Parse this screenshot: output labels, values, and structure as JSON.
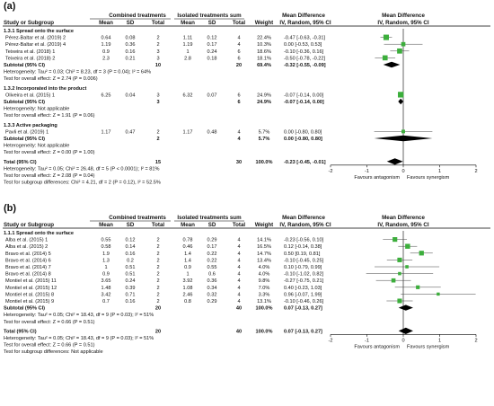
{
  "chart_data": [
    {
      "type": "forest",
      "panel_label": "(a)",
      "group_headers": [
        "Combined treatments",
        "Isolated treatments sum",
        "Mean Difference",
        "Mean Difference"
      ],
      "column_headers": [
        "Study or Subgroup",
        "Mean",
        "SD",
        "Total",
        "Mean",
        "SD",
        "Total",
        "Weight",
        "IV, Random, 95% CI",
        "IV, Random, 95% CI"
      ],
      "x_axis": {
        "min": -2,
        "max": 2,
        "ticks": [
          "-2",
          "-1",
          "0",
          "1",
          "2"
        ]
      },
      "favours_left": "Favours antagonism",
      "favours_right": "Favours synergism",
      "subgroups": [
        {
          "title": "1.3.1 Spread onto the surface",
          "studies": [
            {
              "name": "Pérez-Baltar et al. (2019) 2",
              "mean1": "0.64",
              "sd1": "0.08",
              "n1": "2",
              "mean2": "1.11",
              "sd2": "0.12",
              "n2": "4",
              "weight": "22.4%",
              "ci_text": "-0.47 [-0.63, -0.31]",
              "md": -0.47,
              "lo": -0.63,
              "hi": -0.31
            },
            {
              "name": "Pérez-Baltar et al. (2019) 4",
              "mean1": "1.19",
              "sd1": "0.36",
              "n1": "2",
              "mean2": "1.19",
              "sd2": "0.17",
              "n2": "4",
              "weight": "10.3%",
              "ci_text": "0.00 [-0.53, 0.53]",
              "md": 0.0,
              "lo": -0.53,
              "hi": 0.53
            },
            {
              "name": "Teixeira et al. (2018) 1",
              "mean1": "0.9",
              "sd1": "0.16",
              "n1": "3",
              "mean2": "1",
              "sd2": "0.24",
              "n2": "6",
              "weight": "18.6%",
              "ci_text": "-0.10 [-0.36, 0.16]",
              "md": -0.1,
              "lo": -0.36,
              "hi": 0.16
            },
            {
              "name": "Teixeira et al. (2018) 2",
              "mean1": "2.3",
              "sd1": "0.21",
              "n1": "3",
              "mean2": "2.8",
              "sd2": "0.18",
              "n2": "6",
              "weight": "18.1%",
              "ci_text": "-0.50 [-0.78, -0.22]",
              "md": -0.5,
              "lo": -0.78,
              "hi": -0.22
            }
          ],
          "subtotal": {
            "label": "Subtotal (95% CI)",
            "n1": "10",
            "n2": "20",
            "weight": "69.4%",
            "ci_text": "-0.32 [-0.55, -0.09]",
            "md": -0.32,
            "lo": -0.55,
            "hi": -0.09
          },
          "heterogeneity": "Heterogeneity: Tau² = 0.03; Chi² = 8.23, df = 3 (P = 0.04); I² = 64%",
          "overall_test": "Test for overall effect: Z = 2.74 (P = 0.006)"
        },
        {
          "title": "1.3.2 Incorporated into the product",
          "studies": [
            {
              "name": "Oliveira et al. (2015) 1",
              "mean1": "6.25",
              "sd1": "0.04",
              "n1": "3",
              "mean2": "6.32",
              "sd2": "0.07",
              "n2": "6",
              "weight": "24.9%",
              "ci_text": "-0.07 [-0.14, 0.00]",
              "md": -0.07,
              "lo": -0.14,
              "hi": 0.0
            }
          ],
          "subtotal": {
            "label": "Subtotal (95% CI)",
            "n1": "3",
            "n2": "6",
            "weight": "24.9%",
            "ci_text": "-0.07 [-0.14, 0.00]",
            "md": -0.07,
            "lo": -0.14,
            "hi": 0.0
          },
          "heterogeneity": "Heterogeneity: Not applicable",
          "overall_test": "Test for overall effect: Z = 1.91 (P = 0.06)"
        },
        {
          "title": "1.3.3 Active packaging",
          "studies": [
            {
              "name": "Pavli et al. (2019) 1",
              "mean1": "1.17",
              "sd1": "0.47",
              "n1": "2",
              "mean2": "1.17",
              "sd2": "0.48",
              "n2": "4",
              "weight": "5.7%",
              "ci_text": "0.00 [-0.80, 0.80]",
              "md": 0.0,
              "lo": -0.8,
              "hi": 0.8
            }
          ],
          "subtotal": {
            "label": "Subtotal (95% CI)",
            "n1": "2",
            "n2": "4",
            "weight": "5.7%",
            "ci_text": "0.00 [-0.80, 0.80]",
            "md": 0.0,
            "lo": -0.8,
            "hi": 0.8
          },
          "heterogeneity": "Heterogeneity: Not applicable",
          "overall_test": "Test for overall effect: Z = 0.00 (P = 1.00)"
        }
      ],
      "total": {
        "label": "Total (95% CI)",
        "n1": "15",
        "n2": "30",
        "weight": "100.0%",
        "ci_text": "-0.23 [-0.45, -0.01]",
        "md": -0.23,
        "lo": -0.45,
        "hi": -0.01,
        "heterogeneity": "Heterogeneity: Tau² = 0.05; Chi² = 26.48, df = 5 (P < 0.0001); I² = 81%",
        "overall_test": "Test for overall effect: Z = 2.08 (P = 0.04)",
        "subgroup_test": "Test for subgroup differences: Chi² = 4.21, df = 2 (P = 0.12), I² = 52.5%"
      }
    },
    {
      "type": "forest",
      "panel_label": "(b)",
      "group_headers": [
        "Combined treatments",
        "Isolated treatments sum",
        "Mean Difference",
        "Mean Difference"
      ],
      "column_headers": [
        "Study or Subgroup",
        "Mean",
        "SD",
        "Total",
        "Mean",
        "SD",
        "Total",
        "Weight",
        "IV, Random, 95% CI",
        "IV, Random, 95% CI"
      ],
      "x_axis": {
        "min": -2,
        "max": 2,
        "ticks": [
          "-2",
          "-1",
          "0",
          "1",
          "2"
        ]
      },
      "favours_left": "Favours antagonism",
      "favours_right": "Favours synergism",
      "subgroups": [
        {
          "title": "1.1.1 Spread onto the surface",
          "studies": [
            {
              "name": "Alba et al. (2015) 1",
              "mean1": "0.55",
              "sd1": "0.12",
              "n1": "2",
              "mean2": "0.78",
              "sd2": "0.29",
              "n2": "4",
              "weight": "14.1%",
              "ci_text": "-0.23 [-0.56, 0.10]",
              "md": -0.23,
              "lo": -0.56,
              "hi": 0.1
            },
            {
              "name": "Alba et al. (2015) 2",
              "mean1": "0.58",
              "sd1": "0.14",
              "n1": "2",
              "mean2": "0.46",
              "sd2": "0.17",
              "n2": "4",
              "weight": "16.5%",
              "ci_text": "0.12 [-0.14, 0.38]",
              "md": 0.12,
              "lo": -0.14,
              "hi": 0.38
            },
            {
              "name": "Bravo et al. (2014) 5",
              "mean1": "1.9",
              "sd1": "0.16",
              "n1": "2",
              "mean2": "1.4",
              "sd2": "0.22",
              "n2": "4",
              "weight": "14.7%",
              "ci_text": "0.50 [0.19, 0.81]",
              "md": 0.5,
              "lo": 0.19,
              "hi": 0.81
            },
            {
              "name": "Bravo et al. (2014) 6",
              "mean1": "1.3",
              "sd1": "0.2",
              "n1": "2",
              "mean2": "1.4",
              "sd2": "0.22",
              "n2": "4",
              "weight": "13.4%",
              "ci_text": "-0.10 [-0.45, 0.25]",
              "md": -0.1,
              "lo": -0.45,
              "hi": 0.25
            },
            {
              "name": "Bravo et al. (2014) 7",
              "mean1": "1",
              "sd1": "0.51",
              "n1": "2",
              "mean2": "0.9",
              "sd2": "0.55",
              "n2": "4",
              "weight": "4.0%",
              "ci_text": "0.10 [-0.79, 0.99]",
              "md": 0.1,
              "lo": -0.79,
              "hi": 0.99
            },
            {
              "name": "Bravo et al. (2014) 8",
              "mean1": "0.9",
              "sd1": "0.51",
              "n1": "2",
              "mean2": "1",
              "sd2": "0.6",
              "n2": "4",
              "weight": "4.0%",
              "ci_text": "-0.10 [-1.02, 0.82]",
              "md": -0.1,
              "lo": -1.02,
              "hi": 0.82
            },
            {
              "name": "Montiel et al. (2015) 11",
              "mean1": "3.65",
              "sd1": "0.24",
              "n1": "2",
              "mean2": "3.92",
              "sd2": "0.36",
              "n2": "4",
              "weight": "9.8%",
              "ci_text": "-0.27 [-0.75, 0.21]",
              "md": -0.27,
              "lo": -0.75,
              "hi": 0.21
            },
            {
              "name": "Montiel et al. (2015) 12",
              "mean1": "1.48",
              "sd1": "0.39",
              "n1": "2",
              "mean2": "1.08",
              "sd2": "0.34",
              "n2": "4",
              "weight": "7.0%",
              "ci_text": "0.40 [-0.23, 1.03]",
              "md": 0.4,
              "lo": -0.23,
              "hi": 1.03
            },
            {
              "name": "Montiel et al. (2015) 8",
              "mean1": "3.42",
              "sd1": "0.71",
              "n1": "2",
              "mean2": "2.46",
              "sd2": "0.32",
              "n2": "4",
              "weight": "3.3%",
              "ci_text": "0.96 [-0.07, 1.99]",
              "md": 0.96,
              "lo": -0.07,
              "hi": 1.99
            },
            {
              "name": "Montiel et al. (2015) 9",
              "mean1": "0.7",
              "sd1": "0.16",
              "n1": "2",
              "mean2": "0.8",
              "sd2": "0.29",
              "n2": "4",
              "weight": "13.1%",
              "ci_text": "-0.10 [-0.46, 0.26]",
              "md": -0.1,
              "lo": -0.46,
              "hi": 0.26
            }
          ],
          "subtotal": {
            "label": "Subtotal (95% CI)",
            "n1": "20",
            "n2": "40",
            "weight": "100.0%",
            "ci_text": "0.07 [-0.13, 0.27]",
            "md": 0.07,
            "lo": -0.13,
            "hi": 0.27
          },
          "heterogeneity": "Heterogeneity: Tau² = 0.05; Chi² = 18.43, df = 9 (P = 0.03); I² = 51%",
          "overall_test": "Test for overall effect: Z = 0.66 (P = 0.51)"
        }
      ],
      "total": {
        "label": "Total (95% CI)",
        "n1": "20",
        "n2": "40",
        "weight": "100.0%",
        "ci_text": "0.07 [-0.13, 0.27]",
        "md": 0.07,
        "lo": -0.13,
        "hi": 0.27,
        "heterogeneity": "Heterogeneity: Tau² = 0.05; Chi² = 18.43, df = 9 (P = 0.03); I² = 51%",
        "overall_test": "Test for overall effect: Z = 0.66 (P = 0.51)",
        "subgroup_test": "Test for subgroup differences: Not applicable"
      }
    }
  ],
  "colors": {
    "marker": "#3cae3c",
    "ci_line": "#444444",
    "diamond": "#000000",
    "text": "#111111"
  }
}
